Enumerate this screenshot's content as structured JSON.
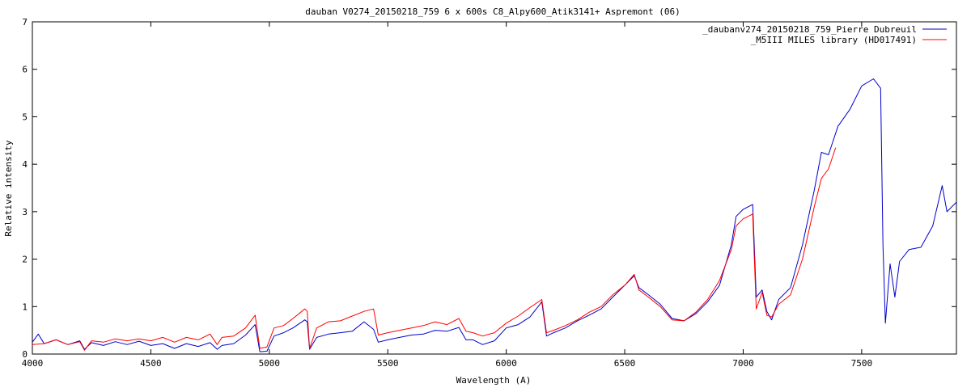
{
  "chart_data": {
    "type": "line",
    "title": "dauban V0274_20150218_759  6 x 600s    C8_Alpy600_Atik3141+  Aspremont (06)",
    "xlabel": "Wavelength (A)",
    "ylabel": "Relative intensity",
    "xlim": [
      4000,
      7900
    ],
    "ylim": [
      0,
      7
    ],
    "x_ticks": [
      4000,
      4500,
      5000,
      5500,
      6000,
      6500,
      7000,
      7500
    ],
    "y_ticks": [
      0,
      1,
      2,
      3,
      4,
      5,
      6,
      7
    ],
    "grid": false,
    "legend_position": "top-right",
    "series": [
      {
        "name": "_daubanv274_20150218_759_Pierre Dubreuil",
        "color": "#0000cc",
        "points": [
          [
            4000,
            0.25
          ],
          [
            4025,
            0.42
          ],
          [
            4050,
            0.22
          ],
          [
            4100,
            0.3
          ],
          [
            4150,
            0.2
          ],
          [
            4200,
            0.28
          ],
          [
            4220,
            0.1
          ],
          [
            4250,
            0.24
          ],
          [
            4300,
            0.18
          ],
          [
            4350,
            0.26
          ],
          [
            4400,
            0.2
          ],
          [
            4450,
            0.27
          ],
          [
            4500,
            0.18
          ],
          [
            4550,
            0.22
          ],
          [
            4600,
            0.12
          ],
          [
            4650,
            0.22
          ],
          [
            4700,
            0.16
          ],
          [
            4750,
            0.24
          ],
          [
            4780,
            0.1
          ],
          [
            4800,
            0.18
          ],
          [
            4850,
            0.22
          ],
          [
            4900,
            0.4
          ],
          [
            4940,
            0.62
          ],
          [
            4960,
            0.05
          ],
          [
            4990,
            0.06
          ],
          [
            5020,
            0.38
          ],
          [
            5060,
            0.45
          ],
          [
            5100,
            0.55
          ],
          [
            5150,
            0.72
          ],
          [
            5160,
            0.68
          ],
          [
            5170,
            0.1
          ],
          [
            5200,
            0.35
          ],
          [
            5250,
            0.42
          ],
          [
            5300,
            0.45
          ],
          [
            5350,
            0.48
          ],
          [
            5400,
            0.68
          ],
          [
            5440,
            0.52
          ],
          [
            5460,
            0.25
          ],
          [
            5500,
            0.3
          ],
          [
            5550,
            0.35
          ],
          [
            5600,
            0.4
          ],
          [
            5650,
            0.42
          ],
          [
            5700,
            0.5
          ],
          [
            5750,
            0.48
          ],
          [
            5800,
            0.56
          ],
          [
            5830,
            0.3
          ],
          [
            5860,
            0.3
          ],
          [
            5900,
            0.2
          ],
          [
            5950,
            0.28
          ],
          [
            6000,
            0.55
          ],
          [
            6050,
            0.62
          ],
          [
            6100,
            0.78
          ],
          [
            6150,
            1.1
          ],
          [
            6170,
            0.38
          ],
          [
            6200,
            0.45
          ],
          [
            6250,
            0.55
          ],
          [
            6300,
            0.7
          ],
          [
            6350,
            0.82
          ],
          [
            6400,
            0.95
          ],
          [
            6450,
            1.2
          ],
          [
            6500,
            1.45
          ],
          [
            6540,
            1.65
          ],
          [
            6560,
            1.4
          ],
          [
            6600,
            1.25
          ],
          [
            6650,
            1.05
          ],
          [
            6700,
            0.75
          ],
          [
            6750,
            0.7
          ],
          [
            6800,
            0.85
          ],
          [
            6850,
            1.1
          ],
          [
            6900,
            1.45
          ],
          [
            6950,
            2.3
          ],
          [
            6970,
            2.9
          ],
          [
            7000,
            3.05
          ],
          [
            7040,
            3.15
          ],
          [
            7055,
            1.2
          ],
          [
            7080,
            1.35
          ],
          [
            7100,
            0.9
          ],
          [
            7120,
            0.72
          ],
          [
            7150,
            1.15
          ],
          [
            7200,
            1.4
          ],
          [
            7250,
            2.3
          ],
          [
            7300,
            3.45
          ],
          [
            7330,
            4.25
          ],
          [
            7360,
            4.2
          ],
          [
            7400,
            4.8
          ],
          [
            7450,
            5.15
          ],
          [
            7500,
            5.65
          ],
          [
            7550,
            5.8
          ],
          [
            7580,
            5.6
          ],
          [
            7590,
            2.3
          ],
          [
            7600,
            0.65
          ],
          [
            7620,
            1.9
          ],
          [
            7640,
            1.2
          ],
          [
            7660,
            1.95
          ],
          [
            7700,
            2.2
          ],
          [
            7750,
            2.25
          ],
          [
            7800,
            2.7
          ],
          [
            7840,
            3.55
          ],
          [
            7860,
            3.0
          ],
          [
            7900,
            3.2
          ]
        ]
      },
      {
        "name": "_M5III  MILES library  (HD017491)",
        "color": "#ff0000",
        "points": [
          [
            4000,
            0.2
          ],
          [
            4050,
            0.22
          ],
          [
            4100,
            0.3
          ],
          [
            4150,
            0.2
          ],
          [
            4200,
            0.26
          ],
          [
            4220,
            0.08
          ],
          [
            4250,
            0.28
          ],
          [
            4300,
            0.25
          ],
          [
            4350,
            0.32
          ],
          [
            4400,
            0.28
          ],
          [
            4450,
            0.32
          ],
          [
            4500,
            0.28
          ],
          [
            4550,
            0.35
          ],
          [
            4600,
            0.25
          ],
          [
            4650,
            0.35
          ],
          [
            4700,
            0.3
          ],
          [
            4750,
            0.42
          ],
          [
            4780,
            0.2
          ],
          [
            4800,
            0.35
          ],
          [
            4850,
            0.38
          ],
          [
            4900,
            0.55
          ],
          [
            4940,
            0.82
          ],
          [
            4960,
            0.12
          ],
          [
            4990,
            0.15
          ],
          [
            5020,
            0.55
          ],
          [
            5060,
            0.6
          ],
          [
            5100,
            0.75
          ],
          [
            5150,
            0.95
          ],
          [
            5160,
            0.9
          ],
          [
            5170,
            0.12
          ],
          [
            5200,
            0.55
          ],
          [
            5250,
            0.68
          ],
          [
            5300,
            0.7
          ],
          [
            5350,
            0.8
          ],
          [
            5400,
            0.9
          ],
          [
            5440,
            0.95
          ],
          [
            5460,
            0.4
          ],
          [
            5500,
            0.45
          ],
          [
            5550,
            0.5
          ],
          [
            5600,
            0.55
          ],
          [
            5650,
            0.6
          ],
          [
            5700,
            0.68
          ],
          [
            5750,
            0.62
          ],
          [
            5800,
            0.75
          ],
          [
            5830,
            0.48
          ],
          [
            5860,
            0.45
          ],
          [
            5900,
            0.38
          ],
          [
            5950,
            0.45
          ],
          [
            6000,
            0.65
          ],
          [
            6050,
            0.8
          ],
          [
            6100,
            0.98
          ],
          [
            6150,
            1.15
          ],
          [
            6170,
            0.45
          ],
          [
            6200,
            0.5
          ],
          [
            6250,
            0.6
          ],
          [
            6300,
            0.72
          ],
          [
            6350,
            0.88
          ],
          [
            6400,
            1.0
          ],
          [
            6450,
            1.25
          ],
          [
            6500,
            1.45
          ],
          [
            6540,
            1.68
          ],
          [
            6560,
            1.35
          ],
          [
            6600,
            1.2
          ],
          [
            6650,
            1.0
          ],
          [
            6700,
            0.72
          ],
          [
            6750,
            0.7
          ],
          [
            6800,
            0.88
          ],
          [
            6850,
            1.15
          ],
          [
            6900,
            1.55
          ],
          [
            6950,
            2.2
          ],
          [
            6970,
            2.7
          ],
          [
            7000,
            2.85
          ],
          [
            7040,
            2.95
          ],
          [
            7055,
            0.95
          ],
          [
            7080,
            1.3
          ],
          [
            7100,
            0.82
          ],
          [
            7120,
            0.78
          ],
          [
            7150,
            1.05
          ],
          [
            7200,
            1.25
          ],
          [
            7250,
            2.0
          ],
          [
            7300,
            3.1
          ],
          [
            7330,
            3.7
          ],
          [
            7360,
            3.9
          ],
          [
            7390,
            4.35
          ]
        ]
      }
    ]
  }
}
